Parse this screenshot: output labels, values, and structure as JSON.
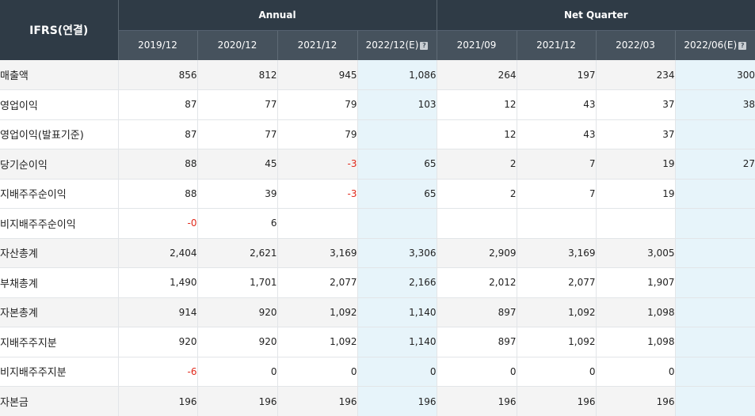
{
  "header": {
    "label": "IFRS(연결)",
    "annual": "Annual",
    "quarter": "Net Quarter",
    "annual_periods": [
      "2019/12",
      "2020/12",
      "2021/12",
      "2022/12(E)"
    ],
    "quarter_periods": [
      "2021/09",
      "2021/12",
      "2022/03",
      "2022/06(E)"
    ],
    "help_icon": "question-icon",
    "help_glyph": "?"
  },
  "rows": [
    {
      "label": "매출액",
      "values": [
        "856",
        "812",
        "945",
        "1,086",
        "264",
        "197",
        "234",
        "300"
      ]
    },
    {
      "label": "영업이익",
      "values": [
        "87",
        "77",
        "79",
        "103",
        "12",
        "43",
        "37",
        "38"
      ]
    },
    {
      "label": "영업이익(발표기준)",
      "values": [
        "87",
        "77",
        "79",
        "",
        "12",
        "43",
        "37",
        ""
      ]
    },
    {
      "label": "당기순이익",
      "values": [
        "88",
        "45",
        "-3",
        "65",
        "2",
        "7",
        "19",
        "27"
      ]
    },
    {
      "label": "지배주주순이익",
      "values": [
        "88",
        "39",
        "-3",
        "65",
        "2",
        "7",
        "19",
        ""
      ]
    },
    {
      "label": "비지배주주순이익",
      "values": [
        "-0",
        "6",
        "",
        "",
        "",
        "",
        "",
        ""
      ]
    },
    {
      "label": "자산총계",
      "values": [
        "2,404",
        "2,621",
        "3,169",
        "3,306",
        "2,909",
        "3,169",
        "3,005",
        ""
      ]
    },
    {
      "label": "부채총계",
      "values": [
        "1,490",
        "1,701",
        "2,077",
        "2,166",
        "2,012",
        "2,077",
        "1,907",
        ""
      ]
    },
    {
      "label": "자본총계",
      "values": [
        "914",
        "920",
        "1,092",
        "1,140",
        "897",
        "1,092",
        "1,098",
        ""
      ]
    },
    {
      "label": "지배주주지분",
      "values": [
        "920",
        "920",
        "1,092",
        "1,140",
        "897",
        "1,092",
        "1,098",
        ""
      ]
    },
    {
      "label": "비지배주주지분",
      "values": [
        "-6",
        "0",
        "0",
        "0",
        "0",
        "0",
        "0",
        ""
      ]
    },
    {
      "label": "자본금",
      "values": [
        "196",
        "196",
        "196",
        "196",
        "196",
        "196",
        "196",
        ""
      ]
    }
  ],
  "colors": {
    "header_dark": "#2f3b46",
    "header_sub": "#46525d",
    "estimate_bg": "#e7f4fa",
    "negative": "#e0291b"
  }
}
